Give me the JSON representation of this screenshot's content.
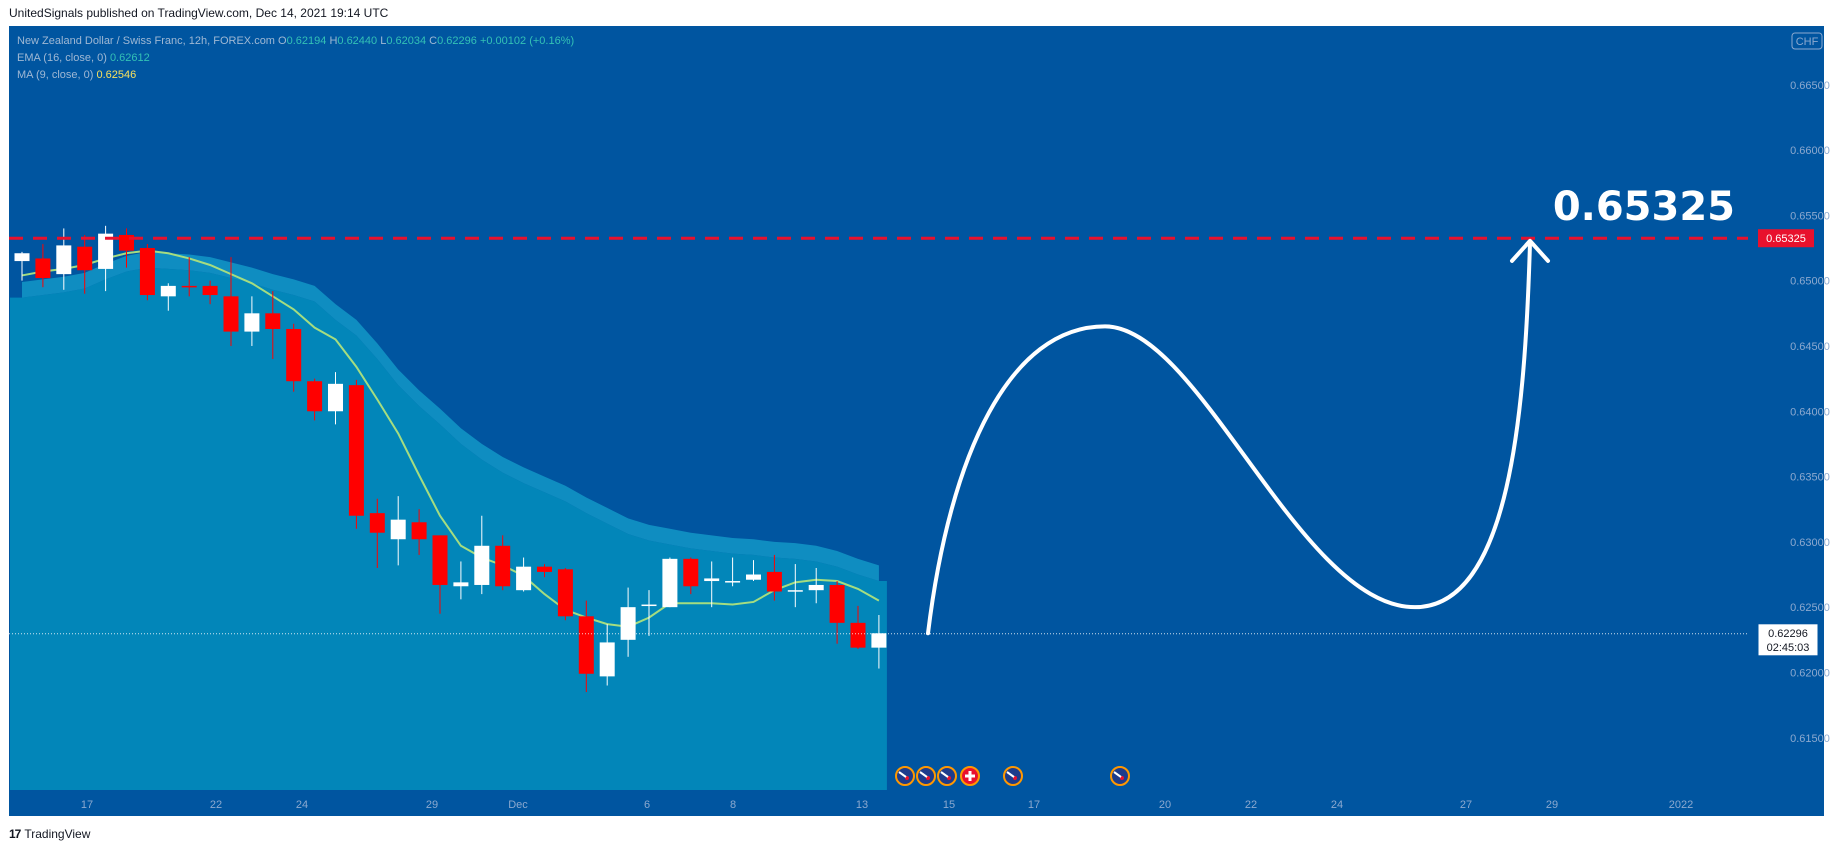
{
  "attribution": "UnitedSignals published on TradingView.com, Dec 14, 2021 19:14 UTC",
  "footer": {
    "logo_mark": "17",
    "brand": "TradingView"
  },
  "legend": {
    "symbol": "New Zealand Dollar / Swiss Franc, 12h, FOREX.com",
    "o_label": "O",
    "o": "0.62194",
    "h_label": "H",
    "h": "0.62440",
    "l_label": "L",
    "l": "0.62034",
    "c_label": "C",
    "c": "0.62296",
    "change": "+0.00102 (+0.16%)",
    "ema_label": "EMA (16, close, 0)",
    "ema_value": "0.62612",
    "ma_label": "MA (9, close, 0)",
    "ma_value": "0.62546"
  },
  "colors": {
    "background": "#0055a0",
    "area_fill": "#0286b9",
    "ema_band": "#14a0cc",
    "ma_line": "#a5dd80",
    "candle_up": "#ffffff",
    "candle_down": "#ff0000",
    "target_line": "#e8112d",
    "projection": "#ffffff"
  },
  "chart_data": {
    "type": "candlestick",
    "currency": "CHF",
    "y_range": [
      0.611,
      0.6695
    ],
    "y_ticks": [
      "0.66500",
      "0.66000",
      "0.65500",
      "0.65000",
      "0.64500",
      "0.64000",
      "0.63500",
      "0.63000",
      "0.62500",
      "0.62000",
      "0.61500"
    ],
    "x_ticks": [
      "17",
      "22",
      "24",
      "29",
      "Dec",
      "6",
      "8",
      "13",
      "15",
      "17",
      "20",
      "22",
      "24",
      "27",
      "29",
      "2022"
    ],
    "candles": [
      {
        "o": 0.6515,
        "h": 0.6522,
        "l": 0.65,
        "c": 0.6521
      },
      {
        "o": 0.6517,
        "h": 0.6528,
        "l": 0.6495,
        "c": 0.6502
      },
      {
        "o": 0.6505,
        "h": 0.654,
        "l": 0.6493,
        "c": 0.6527
      },
      {
        "o": 0.6526,
        "h": 0.6535,
        "l": 0.649,
        "c": 0.6508
      },
      {
        "o": 0.6509,
        "h": 0.6542,
        "l": 0.6492,
        "c": 0.6536
      },
      {
        "o": 0.6535,
        "h": 0.654,
        "l": 0.651,
        "c": 0.6523
      },
      {
        "o": 0.6525,
        "h": 0.6528,
        "l": 0.6485,
        "c": 0.6489
      },
      {
        "o": 0.6488,
        "h": 0.6498,
        "l": 0.6477,
        "c": 0.6496
      },
      {
        "o": 0.6496,
        "h": 0.6518,
        "l": 0.6488,
        "c": 0.6495
      },
      {
        "o": 0.6496,
        "h": 0.65,
        "l": 0.6482,
        "c": 0.6489
      },
      {
        "o": 0.6488,
        "h": 0.6518,
        "l": 0.645,
        "c": 0.6461
      },
      {
        "o": 0.6461,
        "h": 0.6488,
        "l": 0.645,
        "c": 0.6475
      },
      {
        "o": 0.6475,
        "h": 0.6492,
        "l": 0.644,
        "c": 0.6463
      },
      {
        "o": 0.6463,
        "h": 0.6467,
        "l": 0.6415,
        "c": 0.6423
      },
      {
        "o": 0.6423,
        "h": 0.6425,
        "l": 0.6393,
        "c": 0.64
      },
      {
        "o": 0.64,
        "h": 0.643,
        "l": 0.639,
        "c": 0.6421
      },
      {
        "o": 0.642,
        "h": 0.6424,
        "l": 0.631,
        "c": 0.632
      },
      {
        "o": 0.6322,
        "h": 0.6333,
        "l": 0.628,
        "c": 0.6307
      },
      {
        "o": 0.6302,
        "h": 0.6335,
        "l": 0.6282,
        "c": 0.6317
      },
      {
        "o": 0.6315,
        "h": 0.6325,
        "l": 0.629,
        "c": 0.6302
      },
      {
        "o": 0.6305,
        "h": 0.6305,
        "l": 0.6245,
        "c": 0.6267
      },
      {
        "o": 0.6266,
        "h": 0.6285,
        "l": 0.6256,
        "c": 0.6269
      },
      {
        "o": 0.6267,
        "h": 0.632,
        "l": 0.626,
        "c": 0.6297
      },
      {
        "o": 0.6297,
        "h": 0.6305,
        "l": 0.6263,
        "c": 0.6266
      },
      {
        "o": 0.6263,
        "h": 0.6288,
        "l": 0.6262,
        "c": 0.6281
      },
      {
        "o": 0.6281,
        "h": 0.6283,
        "l": 0.6273,
        "c": 0.6277
      },
      {
        "o": 0.6279,
        "h": 0.628,
        "l": 0.624,
        "c": 0.6243
      },
      {
        "o": 0.6243,
        "h": 0.6255,
        "l": 0.6185,
        "c": 0.6199
      },
      {
        "o": 0.6197,
        "h": 0.6237,
        "l": 0.619,
        "c": 0.6223
      },
      {
        "o": 0.6225,
        "h": 0.6265,
        "l": 0.6212,
        "c": 0.625
      },
      {
        "o": 0.6252,
        "h": 0.6263,
        "l": 0.6228,
        "c": 0.6252
      },
      {
        "o": 0.625,
        "h": 0.6288,
        "l": 0.625,
        "c": 0.6287
      },
      {
        "o": 0.6287,
        "h": 0.6288,
        "l": 0.626,
        "c": 0.6266
      },
      {
        "o": 0.627,
        "h": 0.6285,
        "l": 0.625,
        "c": 0.6272
      },
      {
        "o": 0.627,
        "h": 0.6288,
        "l": 0.6266,
        "c": 0.627
      },
      {
        "o": 0.6271,
        "h": 0.6286,
        "l": 0.627,
        "c": 0.6275
      },
      {
        "o": 0.6277,
        "h": 0.629,
        "l": 0.6255,
        "c": 0.6262
      },
      {
        "o": 0.6263,
        "h": 0.6283,
        "l": 0.625,
        "c": 0.6263
      },
      {
        "o": 0.6263,
        "h": 0.628,
        "l": 0.6253,
        "c": 0.6267
      },
      {
        "o": 0.6267,
        "h": 0.627,
        "l": 0.6222,
        "c": 0.6238
      },
      {
        "o": 0.6238,
        "h": 0.6251,
        "l": 0.6218,
        "c": 0.6219
      },
      {
        "o": 0.6219,
        "h": 0.6244,
        "l": 0.6203,
        "c": 0.623
      }
    ],
    "ema": [
      0.6487,
      0.6489,
      0.6491,
      0.6494,
      0.6501,
      0.6507,
      0.651,
      0.6509,
      0.6508,
      0.6506,
      0.6502,
      0.6498,
      0.6493,
      0.6489,
      0.6484,
      0.647,
      0.6458,
      0.644,
      0.642,
      0.6404,
      0.639,
      0.6375,
      0.6363,
      0.6353,
      0.6345,
      0.6338,
      0.6331,
      0.6322,
      0.6314,
      0.6306,
      0.6301,
      0.6298,
      0.6295,
      0.6293,
      0.6291,
      0.629,
      0.6288,
      0.6287,
      0.6285,
      0.6281,
      0.6275,
      0.627
    ],
    "ma": [
      0.6504,
      0.6507,
      0.6509,
      0.6512,
      0.6517,
      0.6521,
      0.6523,
      0.6521,
      0.6517,
      0.6512,
      0.6505,
      0.6498,
      0.6488,
      0.6478,
      0.6464,
      0.6455,
      0.6434,
      0.6409,
      0.6383,
      0.6351,
      0.632,
      0.6297,
      0.6288,
      0.6282,
      0.6274,
      0.626,
      0.6248,
      0.6242,
      0.6237,
      0.6235,
      0.6242,
      0.6253,
      0.6253,
      0.6253,
      0.6252,
      0.6254,
      0.6263,
      0.6269,
      0.6271,
      0.627,
      0.6264,
      0.6255
    ],
    "target_price": "0.65325",
    "target_value": 0.65325,
    "current_price": "0.62296",
    "current_value": 0.62296,
    "countdown": "02:45:03",
    "projection": {
      "annotation": "0.65325",
      "path": [
        [
          0.623,
          0.6465
        ],
        [
          0.648,
          0.625
        ],
        [
          0.633,
          0.6532
        ]
      ]
    },
    "event_markers": [
      {
        "type": "flag-nz"
      },
      {
        "type": "flag-nz"
      },
      {
        "type": "flag-nz"
      },
      {
        "type": "flag-ch"
      },
      {
        "type": "flag-nz"
      },
      {
        "type": "flag-nz"
      }
    ]
  }
}
